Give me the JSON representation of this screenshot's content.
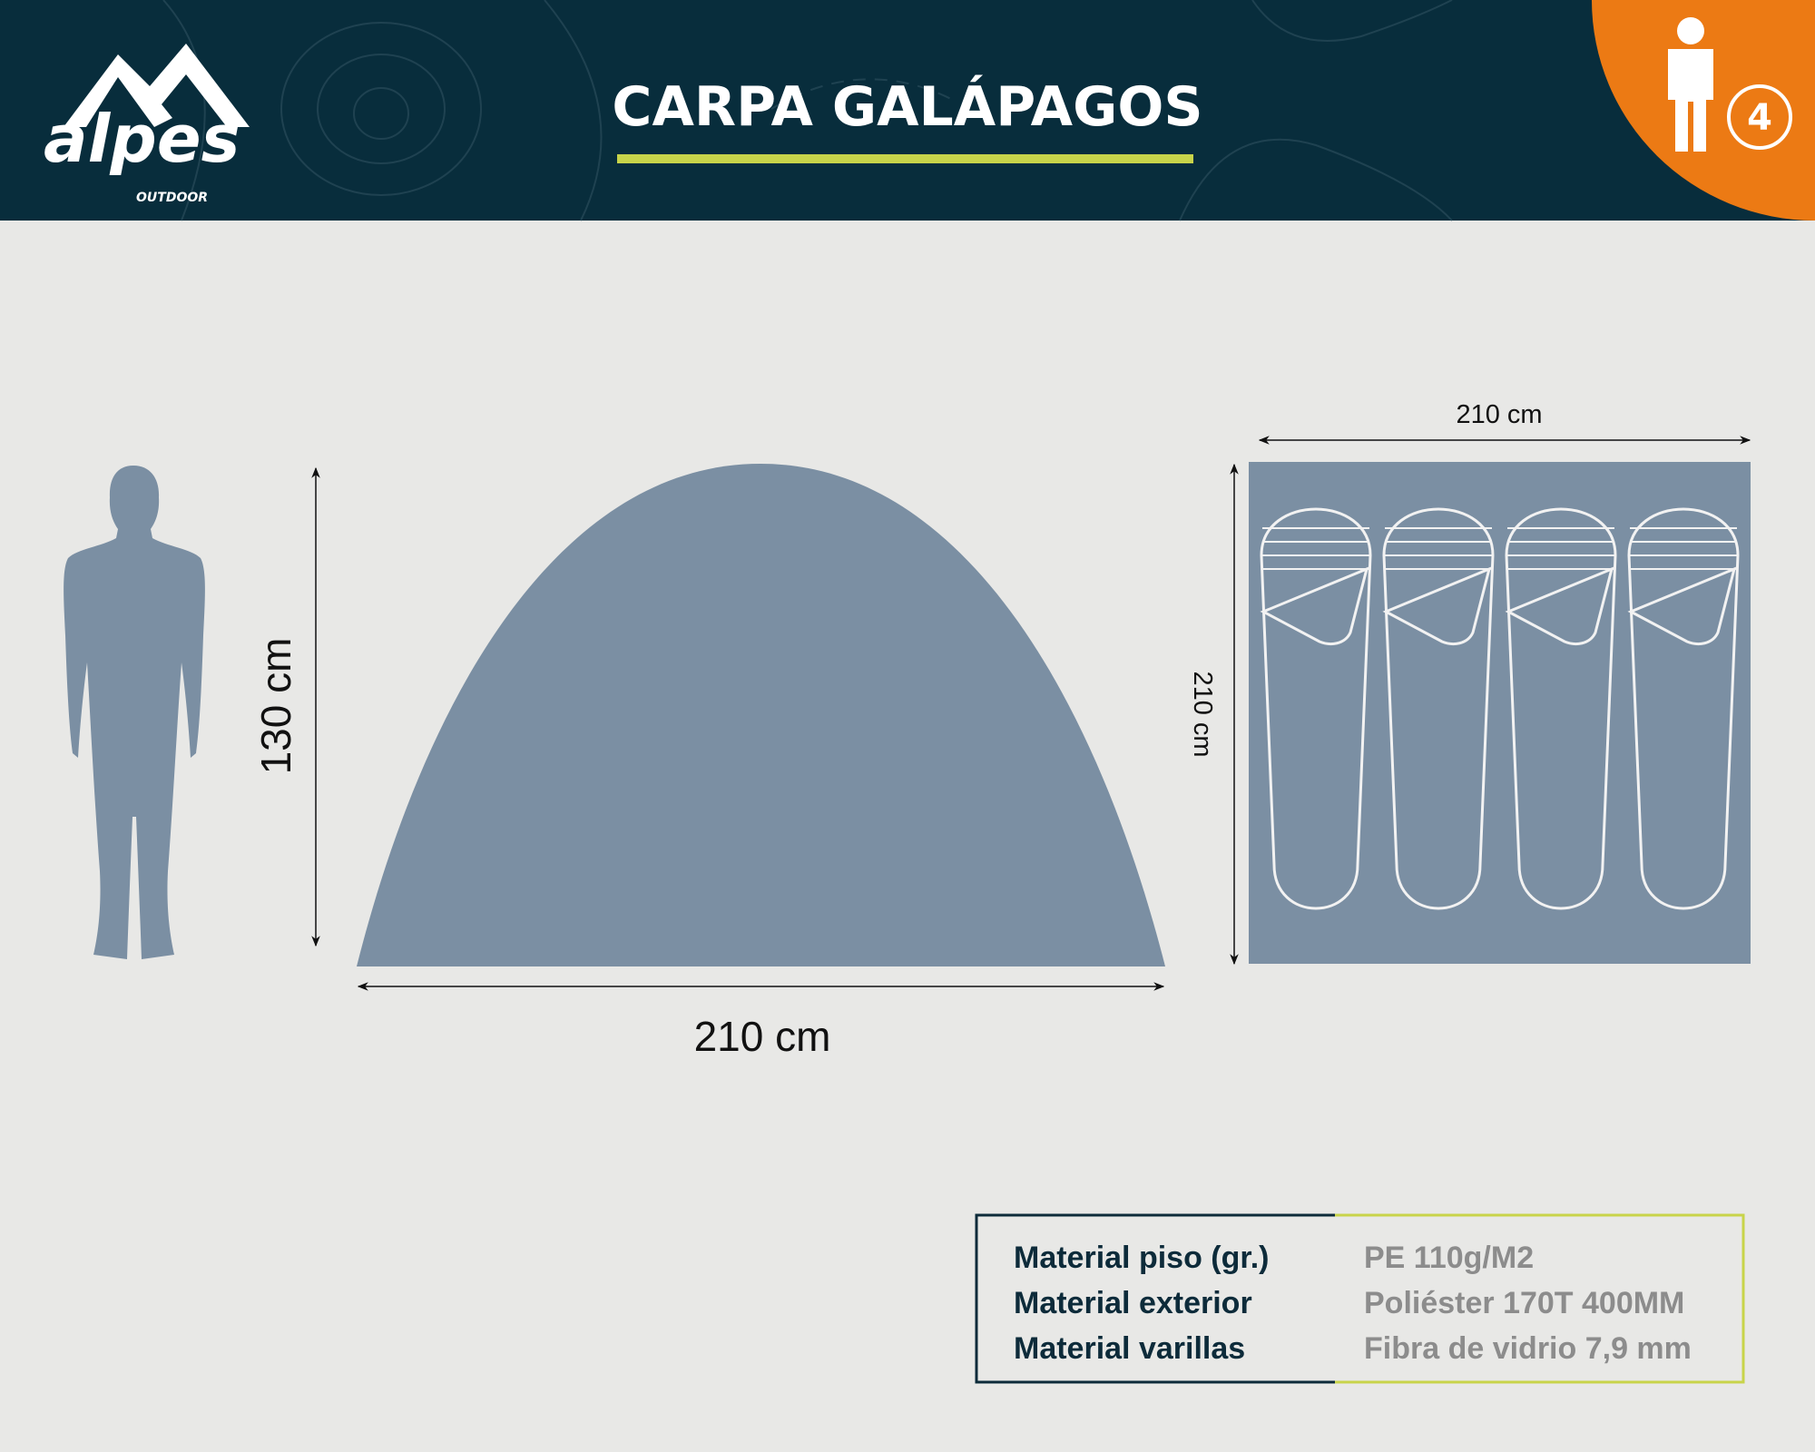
{
  "header": {
    "brand": "alpes",
    "brand_sub": "OUTDOOR",
    "title": "CARPA GALÁPAGOS",
    "capacity": "4",
    "capacity_icon": "person-icon"
  },
  "dimensions": {
    "height_label": "130 cm",
    "front_width_label": "210 cm",
    "floor_width_label": "210 cm",
    "floor_length_label": "210 cm",
    "sleeping_bags": 4
  },
  "specs": [
    {
      "label": "Material piso (gr.)",
      "value": "PE 110g/M2"
    },
    {
      "label": "Material exterior",
      "value": "Poliéster 170T 400MM"
    },
    {
      "label": "Material varillas",
      "value": "Fibra de vidrio 7,9 mm"
    }
  ],
  "colors": {
    "header_bg": "#082d3c",
    "accent_orange": "#ec7a14",
    "accent_lime": "#c8d44a",
    "tent": "#7b8fa3",
    "background": "#e8e8e6"
  }
}
